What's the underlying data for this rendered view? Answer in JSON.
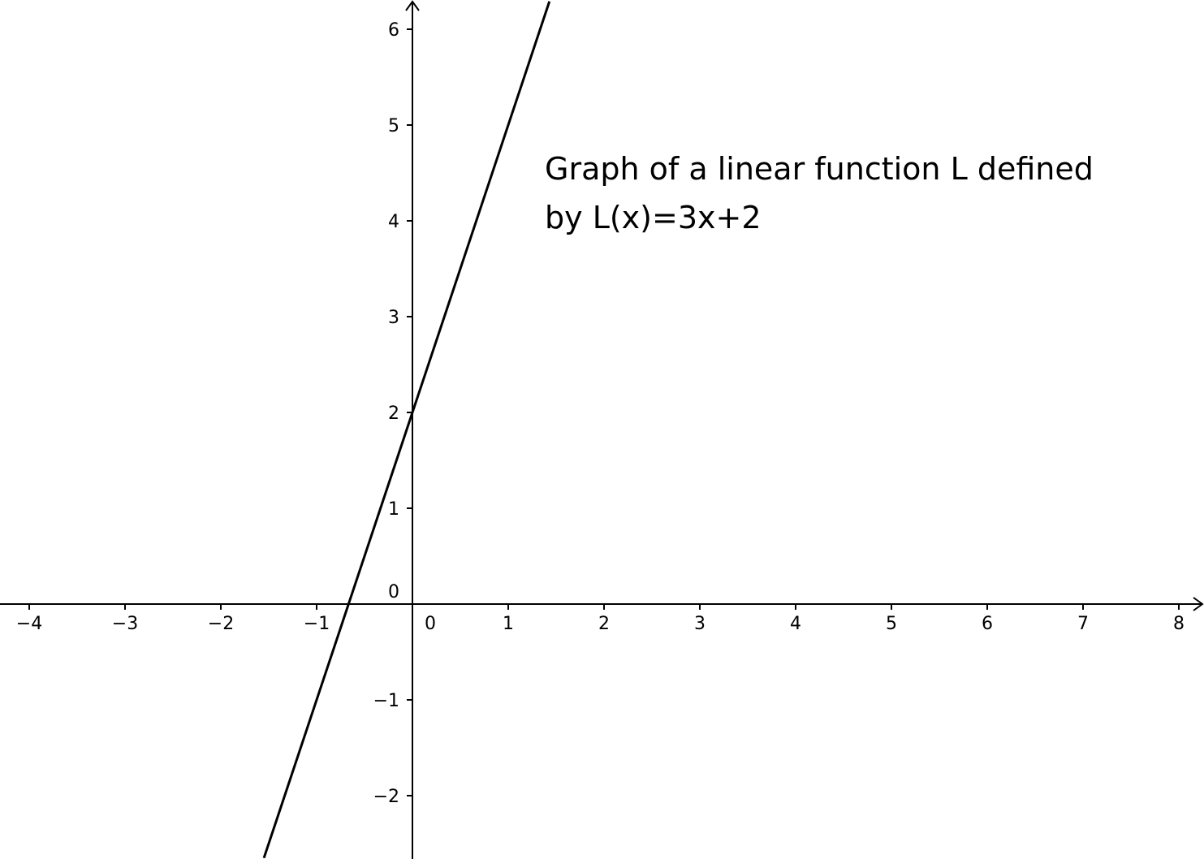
{
  "chart_data": {
    "type": "line",
    "title": "",
    "xlabel": "",
    "ylabel": "",
    "xlim": [
      -4.3,
      8.3
    ],
    "ylim": [
      -2.65,
      6.3
    ],
    "grid": false,
    "x_ticks": [
      -4,
      -3,
      -2,
      -1,
      1,
      2,
      3,
      4,
      5,
      6,
      7,
      8
    ],
    "x_tick_labels": [
      "−4",
      "−3",
      "−2",
      "−1",
      "1",
      "2",
      "3",
      "4",
      "5",
      "6",
      "7",
      "8"
    ],
    "y_ticks": [
      6,
      5,
      4,
      3,
      2,
      1,
      -1,
      -2
    ],
    "y_tick_labels": [
      "6",
      "5",
      "4",
      "3",
      "2",
      "1",
      "−1",
      "−2"
    ],
    "origin_labels": {
      "x": "0",
      "y": "0"
    },
    "series": [
      {
        "slope": 3,
        "intercept": 2,
        "x": [
          -1.55,
          1.43
        ],
        "y": [
          -2.65,
          6.29
        ]
      }
    ],
    "annotation": {
      "line1": "Graph of a linear function L defined",
      "line2": "by L(x)=3x+2"
    },
    "colors": {
      "line": "#000000",
      "axis": "#000000",
      "background": "#ffffff"
    }
  }
}
